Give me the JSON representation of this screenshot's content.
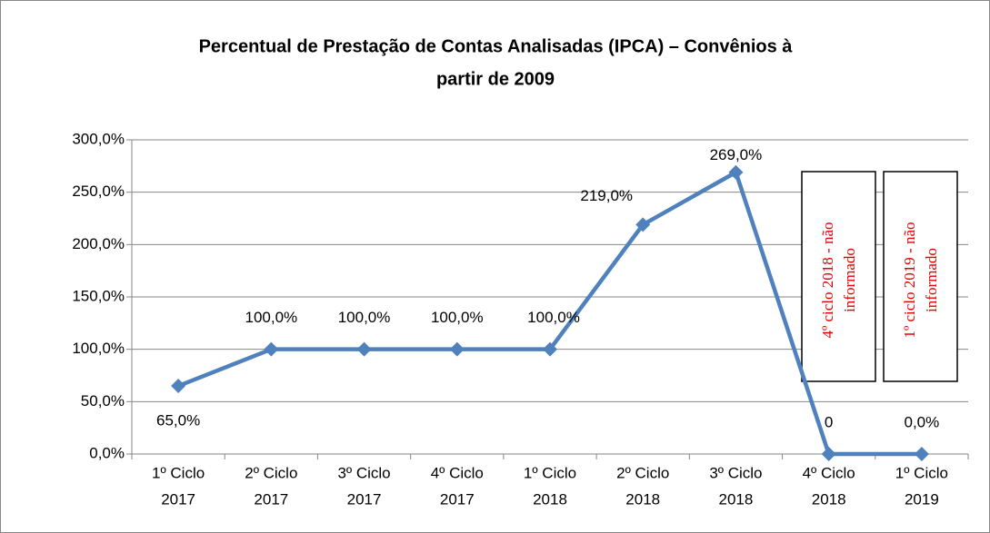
{
  "chart_data": {
    "type": "line",
    "title": [
      "Percentual de Prestação de Contas Analisadas (IPCA) – Convênios à",
      "partir de 2009"
    ],
    "categories": [
      [
        "1º Ciclo",
        "2017"
      ],
      [
        "2º Ciclo",
        "2017"
      ],
      [
        "3º Ciclo",
        "2017"
      ],
      [
        "4º Ciclo",
        "2017"
      ],
      [
        "1º Ciclo",
        "2018"
      ],
      [
        "2º Ciclo",
        "2018"
      ],
      [
        "3º Ciclo",
        "2018"
      ],
      [
        "4º Ciclo",
        "2018"
      ],
      [
        "1º Ciclo",
        "2019"
      ]
    ],
    "values": [
      65,
      100,
      100,
      100,
      100,
      219,
      269,
      0,
      0
    ],
    "value_labels": [
      "65,0%",
      "100,0%",
      "100,0%",
      "100,0%",
      "100,0%",
      "219,0%",
      "269,0%",
      "0",
      "0,0%"
    ],
    "color": "#4f81bd",
    "ylim": [
      0,
      300
    ],
    "yticks": [
      {
        "value": 0,
        "label": "0,0%"
      },
      {
        "value": 50,
        "label": "50,0%"
      },
      {
        "value": 100,
        "label": "100,0%"
      },
      {
        "value": 150,
        "label": "150,0%"
      },
      {
        "value": 200,
        "label": "200,0%"
      },
      {
        "value": 250,
        "label": "250,0%"
      },
      {
        "value": 300,
        "label": "300,0%"
      }
    ],
    "grid": true,
    "annotations": [
      [
        "4º ciclo 2018 - não",
        "informado"
      ],
      [
        "1º ciclo 2019 - não",
        "informado"
      ]
    ]
  }
}
